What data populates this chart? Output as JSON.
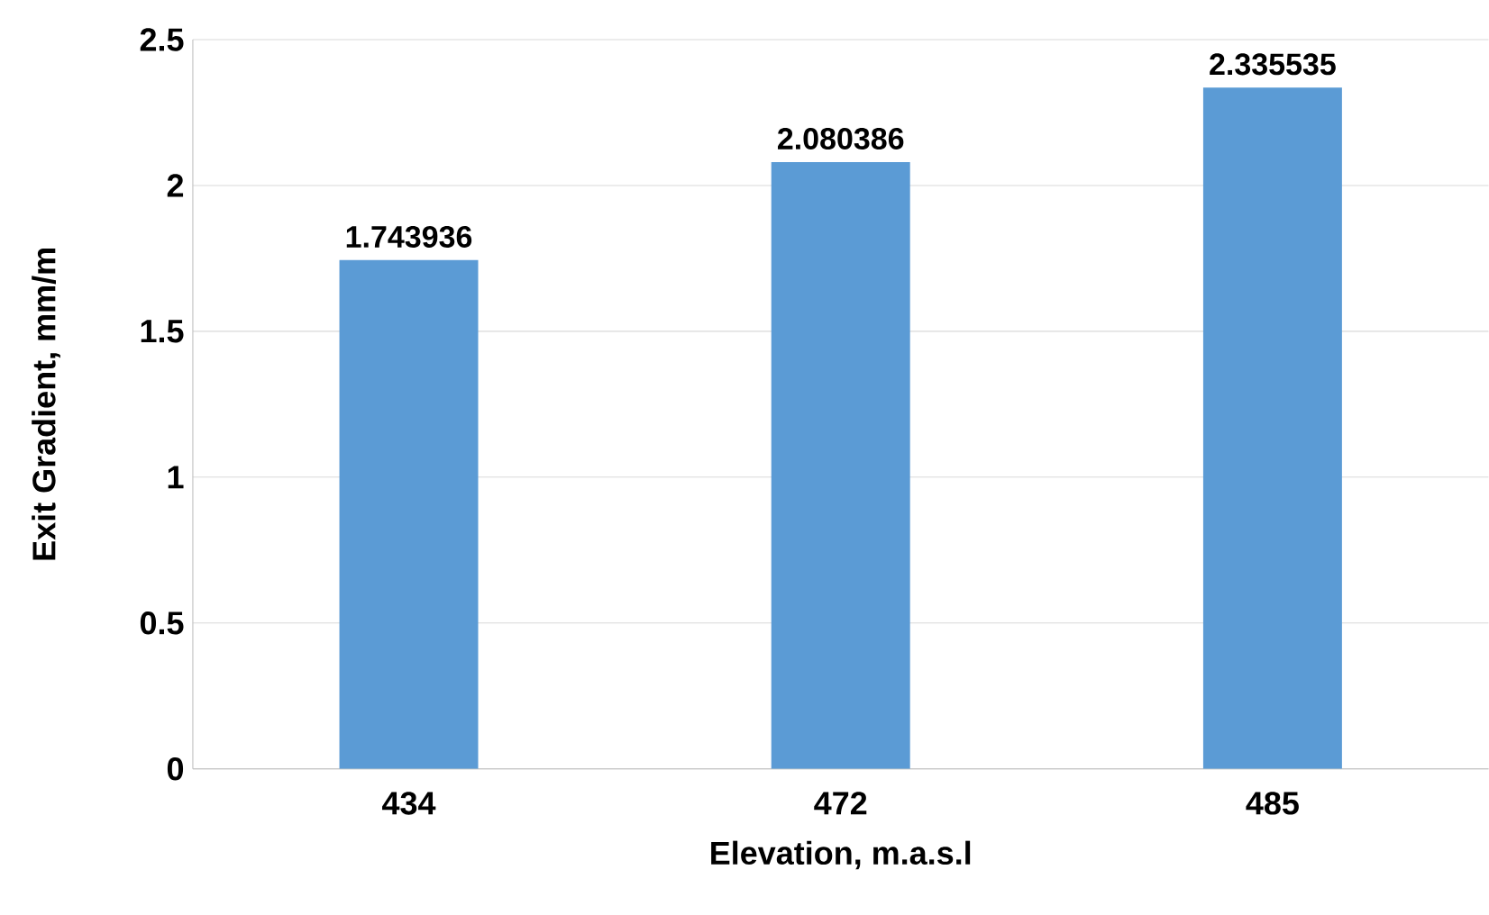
{
  "chart_data": {
    "type": "bar",
    "xlabel": "Elevation, m.a.s.l",
    "ylabel": "Exit Gradient, mm/m",
    "categories": [
      "434",
      "472",
      "485"
    ],
    "values": [
      1.743936,
      2.080386,
      2.335535
    ],
    "color": "#5b9bd5",
    "ylim": [
      0,
      2.5
    ],
    "yticks": [
      0,
      0.5,
      1,
      1.5,
      2,
      2.5
    ],
    "grid": "y",
    "data_labels": true
  }
}
